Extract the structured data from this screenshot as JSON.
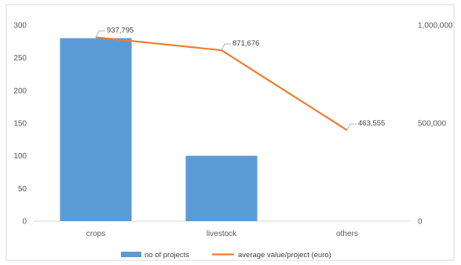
{
  "chart_data": {
    "type": "bar",
    "categories": [
      "crops",
      "livestock",
      "others"
    ],
    "series": [
      {
        "name": "no of projects",
        "type": "bar",
        "axis": "left",
        "values": [
          280,
          100,
          0
        ],
        "color": "#5B9BD5"
      },
      {
        "name": "average value/project (euro)",
        "type": "line",
        "axis": "right",
        "values": [
          937795,
          871676,
          463555
        ],
        "labels": [
          "937,795",
          "871,676",
          "463,555"
        ],
        "color": "#ED7D31"
      }
    ],
    "y_left": {
      "ylim": [
        0,
        300
      ],
      "ticks": [
        "0",
        "50",
        "100",
        "150",
        "200",
        "250",
        "300"
      ]
    },
    "y_right": {
      "ylim": [
        0,
        1000000
      ],
      "ticks": [
        "0",
        "500,000",
        "1,000,000"
      ]
    },
    "title": "",
    "xlabel": "",
    "ylabel": "",
    "grid": false,
    "legend_position": "bottom"
  }
}
